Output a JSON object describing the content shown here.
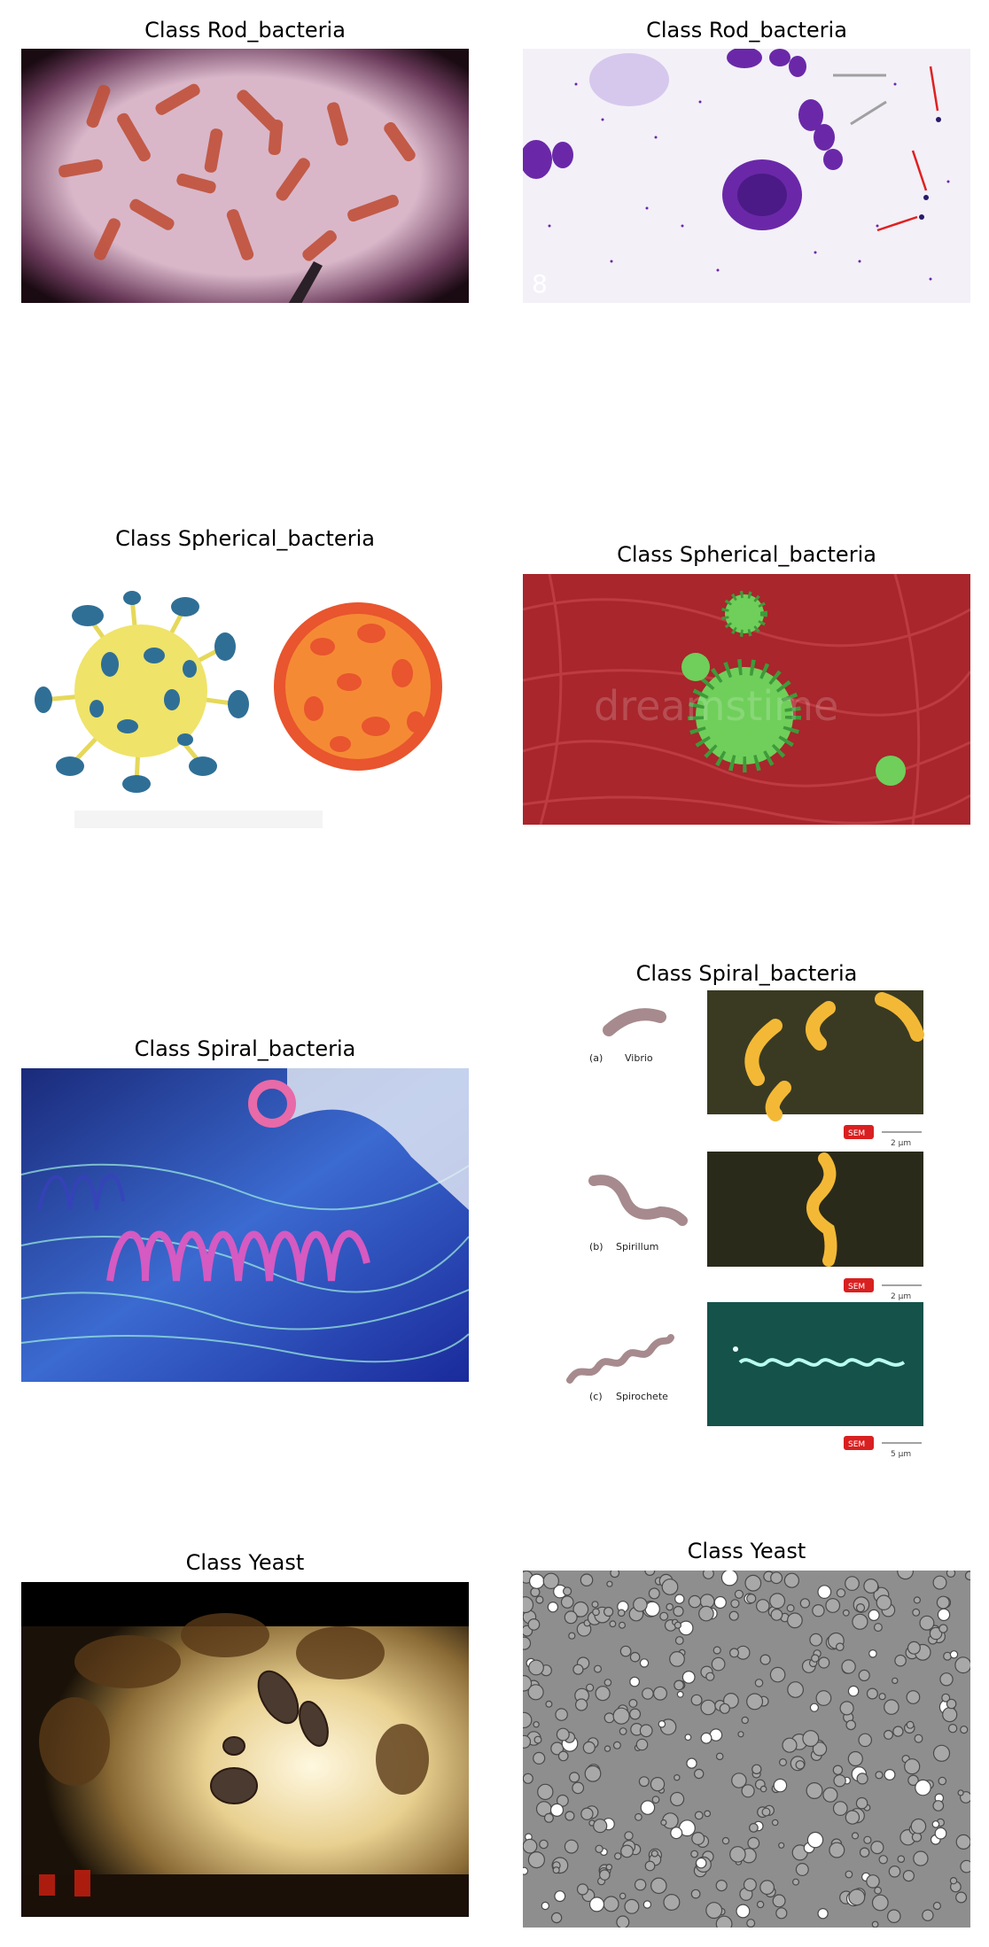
{
  "panels": [
    {
      "title": "Class Rod_bacteria"
    },
    {
      "title": "Class Rod_bacteria"
    },
    {
      "title": "Class Spherical_bacteria"
    },
    {
      "title": "Class Spherical_bacteria"
    },
    {
      "title": "Class Spiral_bacteria"
    },
    {
      "title": "Class Spiral_bacteria"
    },
    {
      "title": "Class Yeast"
    },
    {
      "title": "Class Yeast"
    }
  ],
  "diagram": {
    "a_label": "(a)",
    "a_name": "Vibrio",
    "b_label": "(b)",
    "b_name": "Spirillum",
    "c_label": "(c)",
    "c_name": "Spirochete",
    "sem": "SEM",
    "scale_a": "2 μm",
    "scale_b": "2 μm",
    "scale_c": "5 μm"
  },
  "watermark": "dreamstime",
  "colors": {
    "rod_bg": "#d9b7c9",
    "rod_cells": "#c0503a",
    "stain_bg": "#f3f0f8",
    "stain_purple": "#6a28a8",
    "virus_yellow": "#efe36a",
    "virus_blue": "#2f6f96",
    "virus_orange": "#f58a35",
    "tissue_red": "#a8262c",
    "spike_green": "#6fcf5a",
    "spiral_blue": "#2e3fae",
    "spiral_pink": "#d55ac2",
    "micro_yellow": "#f3b936",
    "micro_teal": "#15524a",
    "yeast_brown": "#8a6a35",
    "yeast_gray": "#8e8e8e"
  }
}
